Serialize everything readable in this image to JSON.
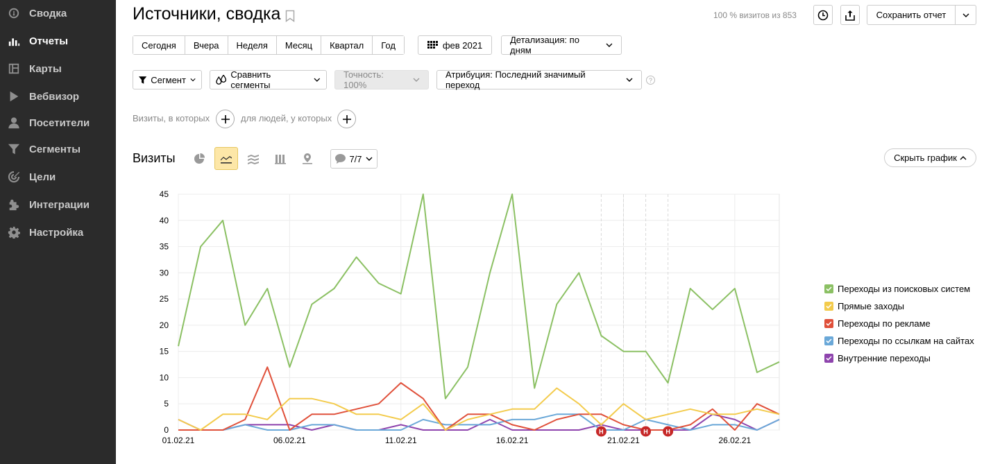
{
  "sidebar": {
    "items": [
      {
        "label": "Сводка",
        "icon": "speedometer-icon",
        "active": false
      },
      {
        "label": "Отчеты",
        "icon": "bar-chart-icon",
        "active": true
      },
      {
        "label": "Карты",
        "icon": "map-layout-icon",
        "active": false
      },
      {
        "label": "Вебвизор",
        "icon": "play-icon",
        "active": false
      },
      {
        "label": "Посетители",
        "icon": "user-icon",
        "active": false
      },
      {
        "label": "Сегменты",
        "icon": "funnel-icon",
        "active": false
      },
      {
        "label": "Цели",
        "icon": "target-icon",
        "active": false
      },
      {
        "label": "Интеграции",
        "icon": "puzzle-icon",
        "active": false
      },
      {
        "label": "Настройка",
        "icon": "gear-icon",
        "active": false
      }
    ]
  },
  "header": {
    "title": "Источники, сводка",
    "visits_info": "100 % визитов из 853",
    "save_label": "Сохранить отчет"
  },
  "periods": [
    "Сегодня",
    "Вчера",
    "Неделя",
    "Месяц",
    "Квартал",
    "Год"
  ],
  "date_range": "фев 2021",
  "detail": "Детализация: по дням",
  "filters": {
    "segment": "Сегмент",
    "compare": "Сравнить сегменты",
    "accuracy": "Точность: 100%",
    "attribution": "Атрибуция: Последний значимый переход",
    "help": "?",
    "visits_where": "Визиты, в которых",
    "people_where": "для людей, у которых"
  },
  "chart_section": {
    "title": "Визиты",
    "annotations": "7/7",
    "hide_label": "Скрыть график"
  },
  "chart_data": {
    "type": "line",
    "ylim": [
      0,
      45
    ],
    "yticks": [
      "0",
      "5",
      "10",
      "15",
      "20",
      "25",
      "30",
      "35",
      "40",
      "45"
    ],
    "xtick_labels": [
      {
        "label": "01.02.21",
        "day": 1,
        "holiday": false
      },
      {
        "label": "06.02.21",
        "day": 6,
        "holiday": true
      },
      {
        "label": "11.02.21",
        "day": 11,
        "holiday": false
      },
      {
        "label": "16.02.21",
        "day": 16,
        "holiday": false
      },
      {
        "label": "21.02.21",
        "day": 21,
        "holiday": true
      },
      {
        "label": "26.02.21",
        "day": 26,
        "holiday": false
      }
    ],
    "annotation_markers": [
      {
        "day": 20,
        "label": "Н"
      },
      {
        "day": 22,
        "label": "Н"
      },
      {
        "day": 23,
        "label": "Н"
      }
    ],
    "annotation_lines": [
      20,
      21,
      22,
      23
    ],
    "x_days": [
      1,
      2,
      3,
      4,
      5,
      6,
      7,
      8,
      9,
      10,
      11,
      12,
      13,
      14,
      15,
      16,
      17,
      18,
      19,
      20,
      21,
      22,
      23,
      24,
      25,
      26,
      27,
      28
    ],
    "series": [
      {
        "name": "Переходы из поисковых систем",
        "color": "#8bc063",
        "values": [
          16,
          35,
          40,
          20,
          27,
          12,
          24,
          27,
          33,
          28,
          26,
          45,
          6,
          12,
          30,
          45,
          8,
          24,
          30,
          18,
          15,
          15,
          9,
          27,
          23,
          27,
          11,
          13
        ]
      },
      {
        "name": "Прямые заходы",
        "color": "#f3cb4c",
        "values": [
          2,
          0,
          3,
          3,
          2,
          6,
          6,
          5,
          3,
          3,
          2,
          5,
          0,
          2,
          3,
          4,
          4,
          8,
          5,
          1,
          5,
          2,
          3,
          4,
          3,
          3,
          4,
          3
        ]
      },
      {
        "name": "Переходы по рекламе",
        "color": "#e0503a",
        "values": [
          0,
          0,
          0,
          2,
          12,
          0,
          3,
          3,
          4,
          5,
          9,
          6,
          0,
          3,
          3,
          1,
          0,
          2,
          3,
          3,
          1,
          0,
          0,
          1,
          4,
          0,
          5,
          3
        ]
      },
      {
        "name": "Переходы по ссылкам на сайтах",
        "color": "#6aa8d8",
        "values": [
          0,
          0,
          0,
          1,
          0,
          0,
          1,
          1,
          0,
          0,
          0,
          2,
          1,
          1,
          1,
          2,
          2,
          3,
          3,
          0,
          0,
          2,
          1,
          0,
          1,
          1,
          0,
          2
        ]
      },
      {
        "name": "Внутренние переходы",
        "color": "#8e44ad",
        "values": [
          2,
          0,
          0,
          1,
          1,
          1,
          0,
          1,
          0,
          0,
          1,
          0,
          0,
          0,
          2,
          0,
          0,
          0,
          0,
          1,
          0,
          0,
          0,
          0,
          3,
          2,
          0,
          2
        ]
      }
    ]
  }
}
